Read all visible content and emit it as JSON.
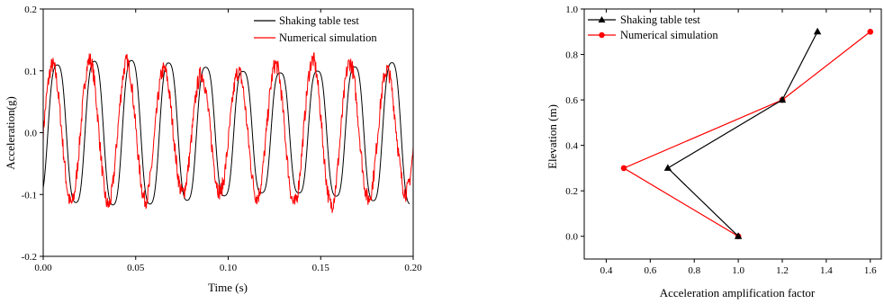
{
  "chart_data": [
    {
      "type": "line",
      "xlabel": "Time (s)",
      "ylabel": "Acceleration(g)",
      "xlim": [
        0.0,
        0.2
      ],
      "ylim": [
        -0.2,
        0.2
      ],
      "x_ticks": [
        "0.00",
        "0.05",
        "0.10",
        "0.15",
        "0.20"
      ],
      "y_ticks": [
        "-0.2",
        "-0.1",
        "0.0",
        "0.1",
        "0.2"
      ],
      "grid": false,
      "legend_position": "top-right",
      "series": [
        {
          "name": "Shaking table test",
          "color": "#000000",
          "period": 0.0201,
          "amplitude": 0.127,
          "phase_lag": 0.0025,
          "t_end": 0.198
        },
        {
          "name": "Numerical simulation",
          "color": "#ff0000",
          "period": 0.0201,
          "amplitude": 0.118,
          "noise": 0.014,
          "t_end": 0.2
        }
      ]
    },
    {
      "type": "line",
      "xlabel": "Acceleration amplification factor",
      "ylabel": "Elevation (m)",
      "xlim": [
        0.3,
        1.65
      ],
      "ylim": [
        -0.1,
        1.0
      ],
      "x_ticks": [
        "0.4",
        "0.6",
        "0.8",
        "1.0",
        "1.2",
        "1.4",
        "1.6"
      ],
      "y_ticks": [
        "0.0",
        "0.2",
        "0.4",
        "0.6",
        "0.8",
        "1.0"
      ],
      "grid": false,
      "legend_position": "top-left",
      "series": [
        {
          "name": "Shaking table test",
          "color": "#000000",
          "marker": "triangle",
          "x": [
            1.0,
            0.68,
            1.2,
            1.36
          ],
          "y": [
            0.0,
            0.3,
            0.6,
            0.9
          ]
        },
        {
          "name": "Numerical simulation",
          "color": "#ff0000",
          "marker": "circle",
          "x": [
            1.0,
            0.48,
            1.2,
            1.6
          ],
          "y": [
            0.0,
            0.3,
            0.6,
            0.9
          ]
        }
      ]
    }
  ]
}
